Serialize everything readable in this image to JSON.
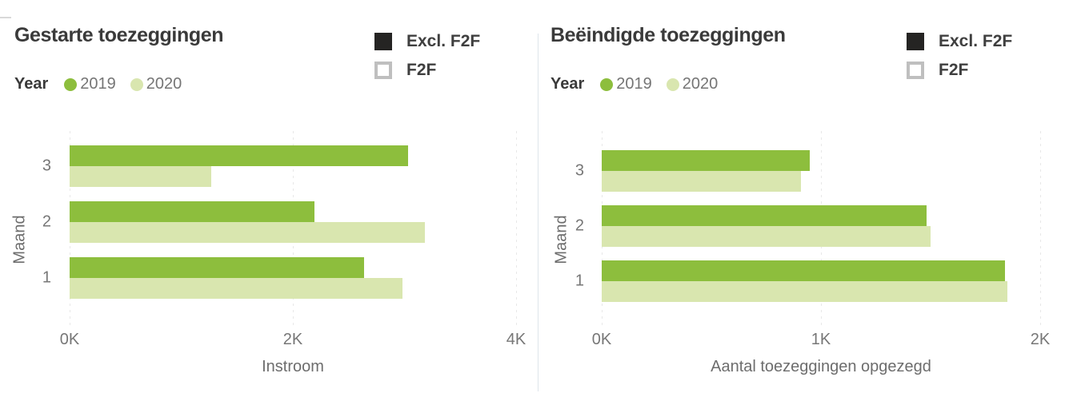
{
  "page": {
    "background": "#ffffff",
    "divider_color": "#dee5eb"
  },
  "chart_data": [
    {
      "type": "bar",
      "orientation": "horizontal",
      "title": "Gestarte toezeggingen",
      "legend_year": {
        "label": "Year",
        "entries": [
          {
            "name": "2019",
            "color": "#8DBE3D"
          },
          {
            "name": "2020",
            "color": "#D9E6AF"
          }
        ],
        "position": "top-left"
      },
      "legend_f2f": {
        "entries": [
          {
            "name": "Excl. F2F",
            "swatch": "solid-black",
            "color": "#252423"
          },
          {
            "name": "F2F",
            "swatch": "outline",
            "color": "#bfbfbf"
          }
        ],
        "position": "top-right"
      },
      "ylabel": "Maand",
      "categories": [
        "3",
        "2",
        "1"
      ],
      "xlabel": "Instroom",
      "xticks": [
        "0K",
        "2K",
        "4K"
      ],
      "xlim": [
        0,
        4000
      ],
      "grid": "dotted-vertical",
      "series": [
        {
          "name": "2019",
          "color": "#8DBE3D",
          "values": [
            3030,
            2190,
            2640
          ]
        },
        {
          "name": "2020",
          "color": "#D9E6AF",
          "values": [
            1270,
            3180,
            2980
          ]
        }
      ]
    },
    {
      "type": "bar",
      "orientation": "horizontal",
      "title": "Beëindigde toezeggingen",
      "legend_year": {
        "label": "Year",
        "entries": [
          {
            "name": "2019",
            "color": "#8DBE3D"
          },
          {
            "name": "2020",
            "color": "#D9E6AF"
          }
        ],
        "position": "top-left"
      },
      "legend_f2f": {
        "entries": [
          {
            "name": "Excl. F2F",
            "swatch": "solid-black",
            "color": "#252423"
          },
          {
            "name": "F2F",
            "swatch": "outline",
            "color": "#bfbfbf"
          }
        ],
        "position": "top-right"
      },
      "ylabel": "Maand",
      "categories": [
        "3",
        "2",
        "1"
      ],
      "xlabel": "Aantal toezeggingen opgezegd",
      "xticks": [
        "0K",
        "1K",
        "2K"
      ],
      "xlim": [
        0,
        2000
      ],
      "grid": "dotted-vertical",
      "series": [
        {
          "name": "2019",
          "color": "#8DBE3D",
          "values": [
            950,
            1480,
            1840
          ]
        },
        {
          "name": "2020",
          "color": "#D9E6AF",
          "values": [
            910,
            1500,
            1850
          ]
        }
      ]
    }
  ]
}
